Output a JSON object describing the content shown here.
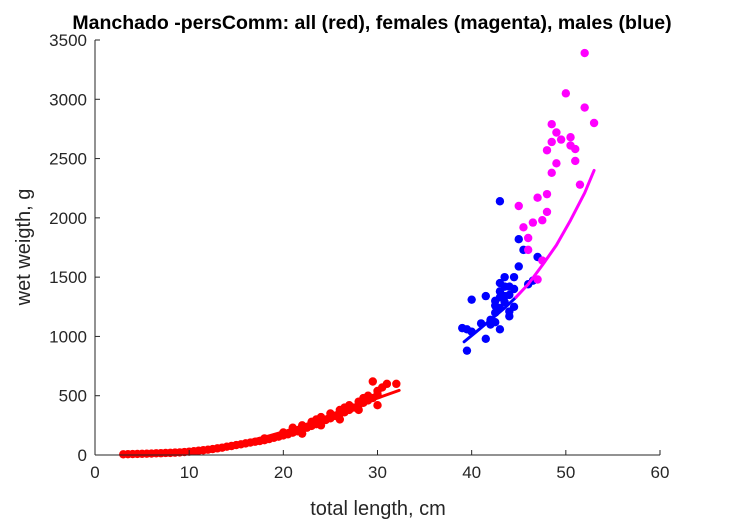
{
  "chart_data": {
    "type": "scatter",
    "title": "Manchado -persComm: all (red), females (magenta), males (blue)",
    "xlabel": "total length, cm",
    "ylabel": "wet weigth, g",
    "xlim": [
      0,
      60
    ],
    "ylim": [
      0,
      3500
    ],
    "xticks": [
      0,
      10,
      20,
      30,
      40,
      50,
      60
    ],
    "yticks": [
      0,
      500,
      1000,
      1500,
      2000,
      2500,
      3000,
      3500
    ],
    "grid": false,
    "colors": {
      "all": "#ff0000",
      "females": "#ff00ff",
      "males": "#0000ff",
      "axis": "#262626"
    },
    "series": [
      {
        "kind": "points",
        "color": "#ff0000",
        "points": [
          [
            3,
            6
          ],
          [
            3.5,
            7
          ],
          [
            4,
            8
          ],
          [
            4.5,
            9
          ],
          [
            5,
            10
          ],
          [
            5.5,
            11
          ],
          [
            6,
            12
          ],
          [
            6.5,
            14
          ],
          [
            7,
            15
          ],
          [
            7.5,
            17
          ],
          [
            8,
            18
          ],
          [
            8.5,
            20
          ],
          [
            9,
            22
          ],
          [
            9.5,
            25
          ],
          [
            10,
            28
          ],
          [
            10.5,
            32
          ],
          [
            11,
            36
          ],
          [
            11.5,
            40
          ],
          [
            12,
            45
          ],
          [
            12.5,
            50
          ],
          [
            13,
            56
          ],
          [
            13.5,
            62
          ],
          [
            14,
            70
          ],
          [
            14.5,
            76
          ],
          [
            15,
            84
          ],
          [
            15.5,
            90
          ],
          [
            16,
            98
          ],
          [
            16.5,
            105
          ],
          [
            17,
            112
          ],
          [
            17.5,
            118
          ],
          [
            18,
            125
          ],
          [
            18.5,
            135
          ],
          [
            19,
            145
          ],
          [
            19.5,
            155
          ],
          [
            20,
            165
          ],
          [
            20.5,
            175
          ],
          [
            21,
            188
          ],
          [
            21.5,
            200
          ],
          [
            22,
            215
          ],
          [
            22.5,
            230
          ],
          [
            23,
            245
          ],
          [
            23.5,
            260
          ],
          [
            24,
            280
          ],
          [
            24.5,
            295
          ],
          [
            25,
            310
          ],
          [
            25.5,
            330
          ],
          [
            26,
            345
          ],
          [
            26.5,
            360
          ],
          [
            27,
            380
          ],
          [
            27.5,
            400
          ],
          [
            28,
            420
          ],
          [
            28.5,
            440
          ],
          [
            29,
            460
          ],
          [
            29.5,
            480
          ],
          [
            30,
            510
          ],
          [
            21,
            230
          ],
          [
            22,
            250
          ],
          [
            23,
            280
          ],
          [
            23.5,
            300
          ],
          [
            24,
            320
          ],
          [
            25,
            350
          ],
          [
            26,
            380
          ],
          [
            26.5,
            400
          ],
          [
            27,
            420
          ],
          [
            28,
            450
          ],
          [
            28.5,
            480
          ],
          [
            29,
            500
          ],
          [
            29.5,
            620
          ],
          [
            30,
            540
          ],
          [
            30.5,
            570
          ],
          [
            31,
            600
          ],
          [
            32,
            600
          ],
          [
            18,
            140
          ],
          [
            20,
            190
          ],
          [
            22,
            180
          ],
          [
            24,
            250
          ],
          [
            26,
            300
          ],
          [
            28,
            380
          ],
          [
            30,
            420
          ]
        ]
      },
      {
        "kind": "points",
        "color": "#0000ff",
        "points": [
          [
            39,
            1070
          ],
          [
            39.5,
            1060
          ],
          [
            39.5,
            880
          ],
          [
            40,
            1040
          ],
          [
            40,
            1310
          ],
          [
            41,
            1110
          ],
          [
            41.5,
            1340
          ],
          [
            41.5,
            980
          ],
          [
            42,
            1140
          ],
          [
            42,
            1100
          ],
          [
            42.5,
            1120
          ],
          [
            42.5,
            1200
          ],
          [
            42.5,
            1260
          ],
          [
            42.5,
            1300
          ],
          [
            43,
            1450
          ],
          [
            43,
            1380
          ],
          [
            43,
            1330
          ],
          [
            43,
            1240
          ],
          [
            43,
            1060
          ],
          [
            43,
            2140
          ],
          [
            43.5,
            1500
          ],
          [
            43.5,
            1420
          ],
          [
            43.5,
            1340
          ],
          [
            43.5,
            1290
          ],
          [
            44,
            1420
          ],
          [
            44,
            1350
          ],
          [
            44,
            1210
          ],
          [
            44,
            1170
          ],
          [
            44.5,
            1500
          ],
          [
            44.5,
            1250
          ],
          [
            45,
            1590
          ],
          [
            45,
            1820
          ],
          [
            45.5,
            1730
          ],
          [
            46,
            1440
          ],
          [
            46.5,
            1470
          ],
          [
            47,
            1670
          ],
          [
            44.5,
            1400
          ]
        ]
      },
      {
        "kind": "points",
        "color": "#ff00ff",
        "points": [
          [
            45,
            2100
          ],
          [
            45.5,
            1920
          ],
          [
            46,
            1830
          ],
          [
            46,
            1730
          ],
          [
            46.5,
            1960
          ],
          [
            47,
            1480
          ],
          [
            47,
            2170
          ],
          [
            47.5,
            1640
          ],
          [
            47.5,
            1980
          ],
          [
            48,
            2570
          ],
          [
            48,
            2200
          ],
          [
            48,
            2050
          ],
          [
            48.5,
            2380
          ],
          [
            48.5,
            2640
          ],
          [
            48.5,
            2790
          ],
          [
            49,
            2720
          ],
          [
            49,
            2460
          ],
          [
            49.5,
            2660
          ],
          [
            50,
            3050
          ],
          [
            50.5,
            2610
          ],
          [
            50.5,
            2680
          ],
          [
            51,
            2480
          ],
          [
            51,
            2580
          ],
          [
            51.5,
            2280
          ],
          [
            52,
            3390
          ],
          [
            52,
            2930
          ],
          [
            53,
            2800
          ]
        ]
      },
      {
        "kind": "curve",
        "color": "#ff0000",
        "points": [
          [
            3,
            3
          ],
          [
            5,
            8
          ],
          [
            8,
            20
          ],
          [
            10,
            35
          ],
          [
            12,
            55
          ],
          [
            15,
            95
          ],
          [
            18,
            150
          ],
          [
            20,
            195
          ],
          [
            22,
            245
          ],
          [
            24,
            305
          ],
          [
            26,
            370
          ],
          [
            28,
            425
          ],
          [
            30,
            480
          ],
          [
            32.3,
            545
          ]
        ]
      },
      {
        "kind": "curve",
        "color": "#0000ff",
        "points": [
          [
            39.2,
            955
          ],
          [
            40.5,
            1040
          ],
          [
            42,
            1140
          ],
          [
            43.5,
            1240
          ],
          [
            44.7,
            1330
          ]
        ]
      },
      {
        "kind": "curve",
        "color": "#ff00ff",
        "points": [
          [
            44.7,
            1330
          ],
          [
            46,
            1440
          ],
          [
            47.5,
            1600
          ],
          [
            49,
            1770
          ],
          [
            50.5,
            1980
          ],
          [
            52,
            2210
          ],
          [
            53,
            2400
          ]
        ]
      }
    ]
  }
}
